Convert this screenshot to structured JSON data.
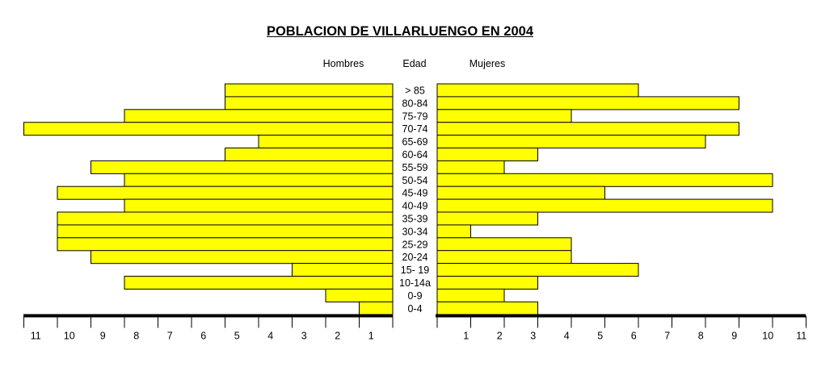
{
  "chart_data": {
    "type": "bar",
    "title": "POBLACION DE VILLARLUENGO EN 2004",
    "headers": {
      "men": "Hombres",
      "age": "Edad",
      "women": "Mujeres"
    },
    "categories": [
      "> 85",
      "80-84",
      "75-79",
      "70-74",
      "65-69",
      "60-64",
      "55-59",
      "50-54",
      "45-49",
      "40-49",
      "35-39",
      "30-34",
      "25-29",
      "20-24",
      "15- 19",
      "10-14a",
      "0-9",
      "0-4"
    ],
    "series": [
      {
        "name": "Hombres",
        "values": [
          5,
          5,
          8,
          11,
          4,
          5,
          9,
          8,
          10,
          8,
          10,
          10,
          10,
          9,
          3,
          8,
          2,
          1
        ]
      },
      {
        "name": "Mujeres",
        "values": [
          6,
          9,
          4,
          9,
          8,
          3,
          2,
          10,
          5,
          10,
          3,
          1,
          4,
          4,
          6,
          3,
          2,
          3
        ]
      }
    ],
    "left_axis_ticks": [
      "11",
      "10",
      "9",
      "8",
      "7",
      "6",
      "5",
      "4",
      "3",
      "2",
      "1"
    ],
    "right_axis_ticks": [
      "1",
      "2",
      "3",
      "4",
      "5",
      "6",
      "7",
      "8",
      "9",
      "10",
      "11"
    ],
    "xlim": [
      0,
      11
    ],
    "grid": false,
    "colors": {
      "bar_fill": "#ffff00",
      "bar_stroke": "#000000"
    }
  }
}
